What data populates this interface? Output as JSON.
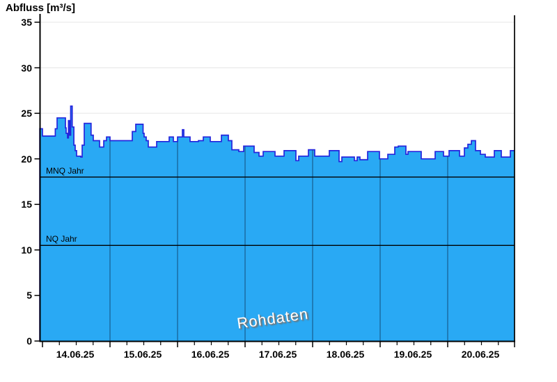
{
  "page": {
    "background": "#ffffff"
  },
  "chart_data": {
    "type": "area",
    "title": "Abfluss [m³/s]",
    "unit": "m³/s",
    "watermark": "Rohdaten",
    "y_axis": {
      "min": 0,
      "max": 35,
      "tick_step": 5,
      "tick_labels": [
        "0",
        "5",
        "10",
        "15",
        "20",
        "25",
        "30",
        "35"
      ],
      "grid": "on"
    },
    "x_axis": {
      "tick_labels": [
        "14.06.25",
        "15.06.25",
        "16.06.25",
        "17.06.25",
        "18.06.25",
        "19.06.25",
        "20.06.25"
      ],
      "minor_ticks_per_day": 4,
      "day_grid": "on"
    },
    "reference_lines": [
      {
        "label": "MNQ Jahr",
        "value": 18.0
      },
      {
        "label": "NQ Jahr",
        "value": 10.5
      }
    ],
    "series": [
      {
        "name": "Abfluss Rohdaten",
        "style": "step-area",
        "points": [
          [
            -0.04,
            23.3
          ],
          [
            -0.005,
            23.3
          ],
          [
            0.0,
            22.5
          ],
          [
            0.165,
            22.5
          ],
          [
            0.19,
            23.3
          ],
          [
            0.216,
            24.5
          ],
          [
            0.32,
            24.5
          ],
          [
            0.34,
            23.4
          ],
          [
            0.351,
            22.8
          ],
          [
            0.371,
            22.3
          ],
          [
            0.385,
            24.2
          ],
          [
            0.4,
            22.6
          ],
          [
            0.418,
            25.8
          ],
          [
            0.44,
            23.5
          ],
          [
            0.465,
            21.5
          ],
          [
            0.485,
            20.9
          ],
          [
            0.505,
            20.3
          ],
          [
            0.567,
            20.2
          ],
          [
            0.588,
            21.5
          ],
          [
            0.619,
            23.9
          ],
          [
            0.701,
            23.9
          ],
          [
            0.72,
            22.6
          ],
          [
            0.753,
            22.0
          ],
          [
            0.825,
            22.0
          ],
          [
            0.845,
            21.3
          ],
          [
            0.887,
            21.3
          ],
          [
            0.907,
            22.0
          ],
          [
            0.948,
            22.4
          ],
          [
            1.0,
            22.0
          ],
          [
            1.299,
            22.0
          ],
          [
            1.33,
            23.0
          ],
          [
            1.381,
            23.8
          ],
          [
            1.464,
            23.8
          ],
          [
            1.49,
            22.8
          ],
          [
            1.505,
            22.4
          ],
          [
            1.536,
            22.0
          ],
          [
            1.567,
            21.3
          ],
          [
            1.67,
            21.3
          ],
          [
            1.691,
            21.9
          ],
          [
            1.866,
            21.9
          ],
          [
            1.876,
            22.4
          ],
          [
            1.928,
            22.4
          ],
          [
            1.938,
            21.9
          ],
          [
            2.0,
            22.4
          ],
          [
            2.062,
            22.4
          ],
          [
            2.072,
            23.2
          ],
          [
            2.093,
            22.4
          ],
          [
            2.186,
            21.9
          ],
          [
            2.309,
            22.0
          ],
          [
            2.381,
            22.4
          ],
          [
            2.485,
            21.9
          ],
          [
            2.649,
            22.6
          ],
          [
            2.753,
            22.0
          ],
          [
            2.804,
            21.0
          ],
          [
            2.907,
            20.8
          ],
          [
            2.979,
            21.4
          ],
          [
            3.134,
            20.7
          ],
          [
            3.206,
            20.3
          ],
          [
            3.268,
            20.8
          ],
          [
            3.443,
            20.3
          ],
          [
            3.577,
            20.9
          ],
          [
            3.753,
            19.8
          ],
          [
            3.794,
            20.3
          ],
          [
            3.938,
            21.0
          ],
          [
            4.031,
            20.3
          ],
          [
            4.247,
            20.9
          ],
          [
            4.392,
            19.7
          ],
          [
            4.433,
            20.2
          ],
          [
            4.619,
            19.8
          ],
          [
            4.66,
            20.2
          ],
          [
            4.701,
            19.9
          ],
          [
            4.814,
            20.8
          ],
          [
            4.99,
            20.0
          ],
          [
            5.113,
            20.5
          ],
          [
            5.216,
            21.3
          ],
          [
            5.268,
            21.4
          ],
          [
            5.381,
            20.5
          ],
          [
            5.412,
            20.8
          ],
          [
            5.608,
            20.0
          ],
          [
            5.814,
            20.8
          ],
          [
            5.938,
            20.3
          ],
          [
            6.021,
            20.9
          ],
          [
            6.175,
            20.3
          ],
          [
            6.247,
            21.2
          ],
          [
            6.299,
            21.6
          ],
          [
            6.351,
            22.0
          ],
          [
            6.412,
            20.9
          ],
          [
            6.485,
            20.5
          ],
          [
            6.557,
            20.2
          ],
          [
            6.691,
            20.9
          ],
          [
            6.794,
            20.2
          ],
          [
            6.928,
            20.9
          ],
          [
            6.99,
            20.9
          ]
        ]
      }
    ],
    "colors": {
      "area_fill": "#29a9f4",
      "series_line": "#2424dd",
      "h_grid": "#ebebeb",
      "day_grid_over_fill": "rgba(0,0,20,0.45)",
      "axis": "#000000",
      "reference_line": "#000000",
      "text": "#000000",
      "watermark_text": "#ffffff"
    }
  }
}
